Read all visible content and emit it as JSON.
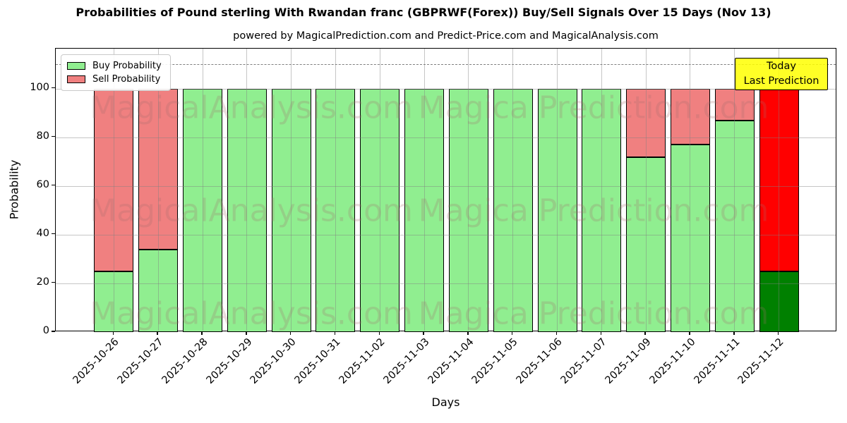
{
  "title": "Probabilities of Pound sterling With Rwandan franc (GBPRWF(Forex)) Buy/Sell Signals Over 15 Days (Nov 13)",
  "subtitle": "powered by MagicalPrediction.com and Predict-Price.com and MagicalAnalysis.com",
  "watermarks": {
    "left": "MagicalAnalysis.com",
    "right": "Magica Prediction.com"
  },
  "annotation": {
    "line1": "Today",
    "line2": "Last Prediction",
    "background": "rgba(255,255,0,0.85)"
  },
  "legend": [
    {
      "label": "Buy Probability",
      "color": "#90EE90"
    },
    {
      "label": "Sell Probability",
      "color": "#F08080"
    }
  ],
  "chart_data": {
    "type": "bar",
    "stacked": true,
    "title": "Probabilities of Pound sterling With Rwandan franc (GBPRWF(Forex)) Buy/Sell Signals Over 15 Days (Nov 13)",
    "xlabel": "Days",
    "ylabel": "Probability",
    "ylim": [
      0,
      116.5
    ],
    "yticks": [
      0,
      20,
      40,
      60,
      80,
      100
    ],
    "dashed_line_y": 110,
    "grid": true,
    "legend_position": "upper left",
    "bar_edge_color": "#000000",
    "categories": [
      "2025-10-26",
      "2025-10-27",
      "2025-10-28",
      "2025-10-29",
      "2025-10-30",
      "2025-10-31",
      "2025-11-02",
      "2025-11-03",
      "2025-11-04",
      "2025-11-05",
      "2025-11-06",
      "2025-11-07",
      "2025-11-09",
      "2025-11-10",
      "2025-11-11",
      "2025-11-12"
    ],
    "series": [
      {
        "name": "Buy Probability",
        "color": "#90EE90",
        "today_color": "#008000",
        "values": [
          25,
          34,
          100,
          100,
          100,
          100,
          100,
          100,
          100,
          100,
          100,
          100,
          72,
          77,
          87,
          25
        ]
      },
      {
        "name": "Sell Probability",
        "color": "#F08080",
        "today_color": "#FF0000",
        "values": [
          75,
          66,
          0,
          0,
          0,
          0,
          0,
          0,
          0,
          0,
          0,
          0,
          28,
          23,
          13,
          75
        ]
      }
    ],
    "today_index": 15
  }
}
